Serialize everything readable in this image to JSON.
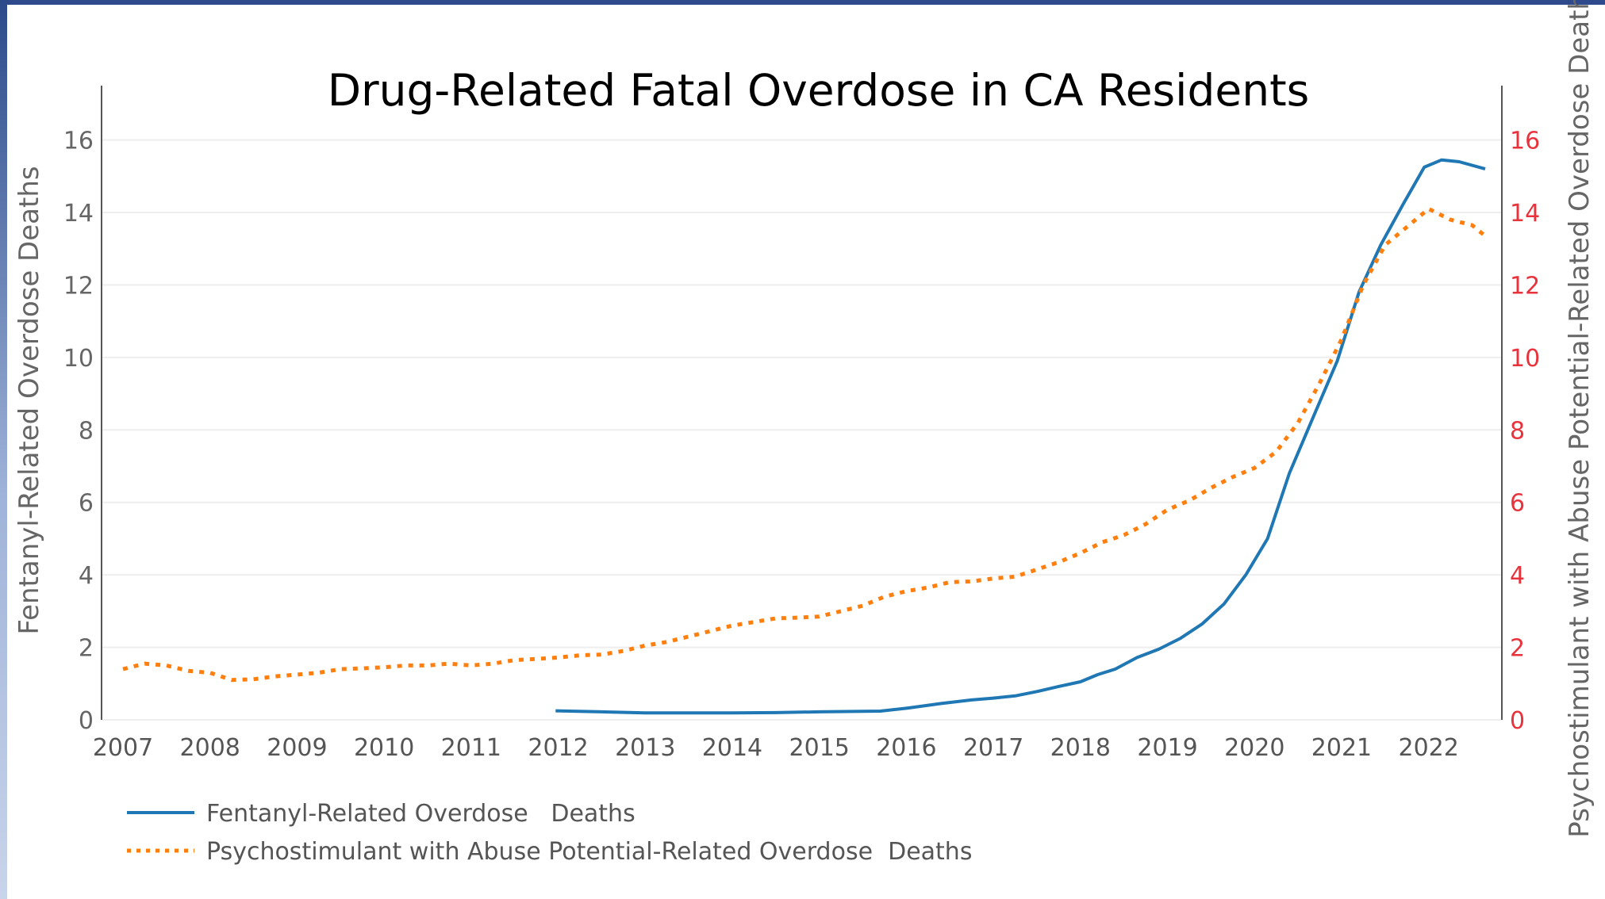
{
  "chart_data": {
    "type": "line",
    "title": "Drug-Related Fatal Overdose in CA Residents",
    "xlabel": "",
    "ylabel_left": "Fentanyl-Related Overdose   Deaths",
    "ylabel_right": "Psychostimulant with Abuse Potential-Related Overdose   Deaths",
    "x_ticks": [
      "2007",
      "2008",
      "2009",
      "2010",
      "2011",
      "2012",
      "2013",
      "2014",
      "2015",
      "2016",
      "2017",
      "2018",
      "2019",
      "2020",
      "2021",
      "2022"
    ],
    "xlim": [
      2007,
      2022.65
    ],
    "y_ticks": [
      "0",
      "2",
      "4",
      "6",
      "8",
      "10",
      "12",
      "14",
      "16"
    ],
    "ylim": [
      0,
      17.5
    ],
    "grid": true,
    "legend_position": "bottom-left",
    "colors": {
      "fentanyl": "#1f77b4",
      "psychostimulant": "#ff7f0e",
      "right_axis": "#e8323c",
      "left_axis": "#666666"
    },
    "series": [
      {
        "name": "Fentanyl-Related Overdose   Deaths",
        "style": "solid",
        "axis": "left",
        "x": [
          2011.97,
          2012.5,
          2013.0,
          2013.5,
          2014.0,
          2014.5,
          2015.0,
          2015.7,
          2016.0,
          2016.4,
          2016.75,
          2017.0,
          2017.25,
          2017.5,
          2017.75,
          2018.0,
          2018.2,
          2018.4,
          2018.65,
          2018.9,
          2019.15,
          2019.4,
          2019.65,
          2019.9,
          2020.15,
          2020.4,
          2020.7,
          2020.95,
          2021.2,
          2021.45,
          2021.7,
          2021.95,
          2022.15,
          2022.35,
          2022.65
        ],
        "values": [
          0.25,
          0.22,
          0.19,
          0.19,
          0.19,
          0.2,
          0.22,
          0.24,
          0.32,
          0.45,
          0.55,
          0.6,
          0.66,
          0.78,
          0.92,
          1.05,
          1.25,
          1.4,
          1.72,
          1.95,
          2.25,
          2.65,
          3.2,
          4.0,
          5.0,
          6.8,
          8.5,
          9.9,
          11.8,
          13.1,
          14.2,
          15.25,
          15.45,
          15.4,
          15.2
        ]
      },
      {
        "name": "Psychostimulant with Abuse Potential-Related Overdose  Deaths",
        "style": "dotted",
        "axis": "right",
        "x": [
          2007.0,
          2007.25,
          2007.5,
          2007.75,
          2008.0,
          2008.25,
          2008.5,
          2008.75,
          2009.0,
          2009.25,
          2009.5,
          2009.75,
          2010.0,
          2010.25,
          2010.5,
          2010.75,
          2011.0,
          2011.25,
          2011.5,
          2011.75,
          2012.0,
          2012.25,
          2012.5,
          2012.75,
          2013.0,
          2013.25,
          2013.5,
          2013.75,
          2014.0,
          2014.25,
          2014.5,
          2014.75,
          2015.0,
          2015.25,
          2015.5,
          2015.75,
          2016.0,
          2016.25,
          2016.5,
          2016.75,
          2017.0,
          2017.25,
          2017.5,
          2017.75,
          2018.0,
          2018.25,
          2018.5,
          2018.75,
          2019.0,
          2019.25,
          2019.5,
          2019.75,
          2020.0,
          2020.25,
          2020.5,
          2020.75,
          2021.0,
          2021.25,
          2021.5,
          2021.75,
          2022.0,
          2022.25,
          2022.5,
          2022.65
        ],
        "values": [
          1.4,
          1.55,
          1.5,
          1.35,
          1.3,
          1.1,
          1.12,
          1.2,
          1.25,
          1.3,
          1.4,
          1.42,
          1.45,
          1.5,
          1.5,
          1.55,
          1.5,
          1.55,
          1.65,
          1.68,
          1.72,
          1.78,
          1.8,
          1.9,
          2.05,
          2.15,
          2.3,
          2.45,
          2.6,
          2.7,
          2.8,
          2.82,
          2.85,
          3.0,
          3.15,
          3.4,
          3.55,
          3.65,
          3.8,
          3.82,
          3.9,
          3.95,
          4.15,
          4.35,
          4.6,
          4.9,
          5.1,
          5.4,
          5.8,
          6.05,
          6.4,
          6.7,
          6.95,
          7.4,
          8.2,
          9.3,
          10.5,
          12.0,
          13.1,
          13.6,
          14.1,
          13.8,
          13.65,
          13.35
        ]
      }
    ]
  },
  "legend": {
    "items": [
      {
        "label": "Fentanyl-Related Overdose   Deaths"
      },
      {
        "label": "Psychostimulant with Abuse Potential-Related Overdose  Deaths"
      }
    ]
  }
}
